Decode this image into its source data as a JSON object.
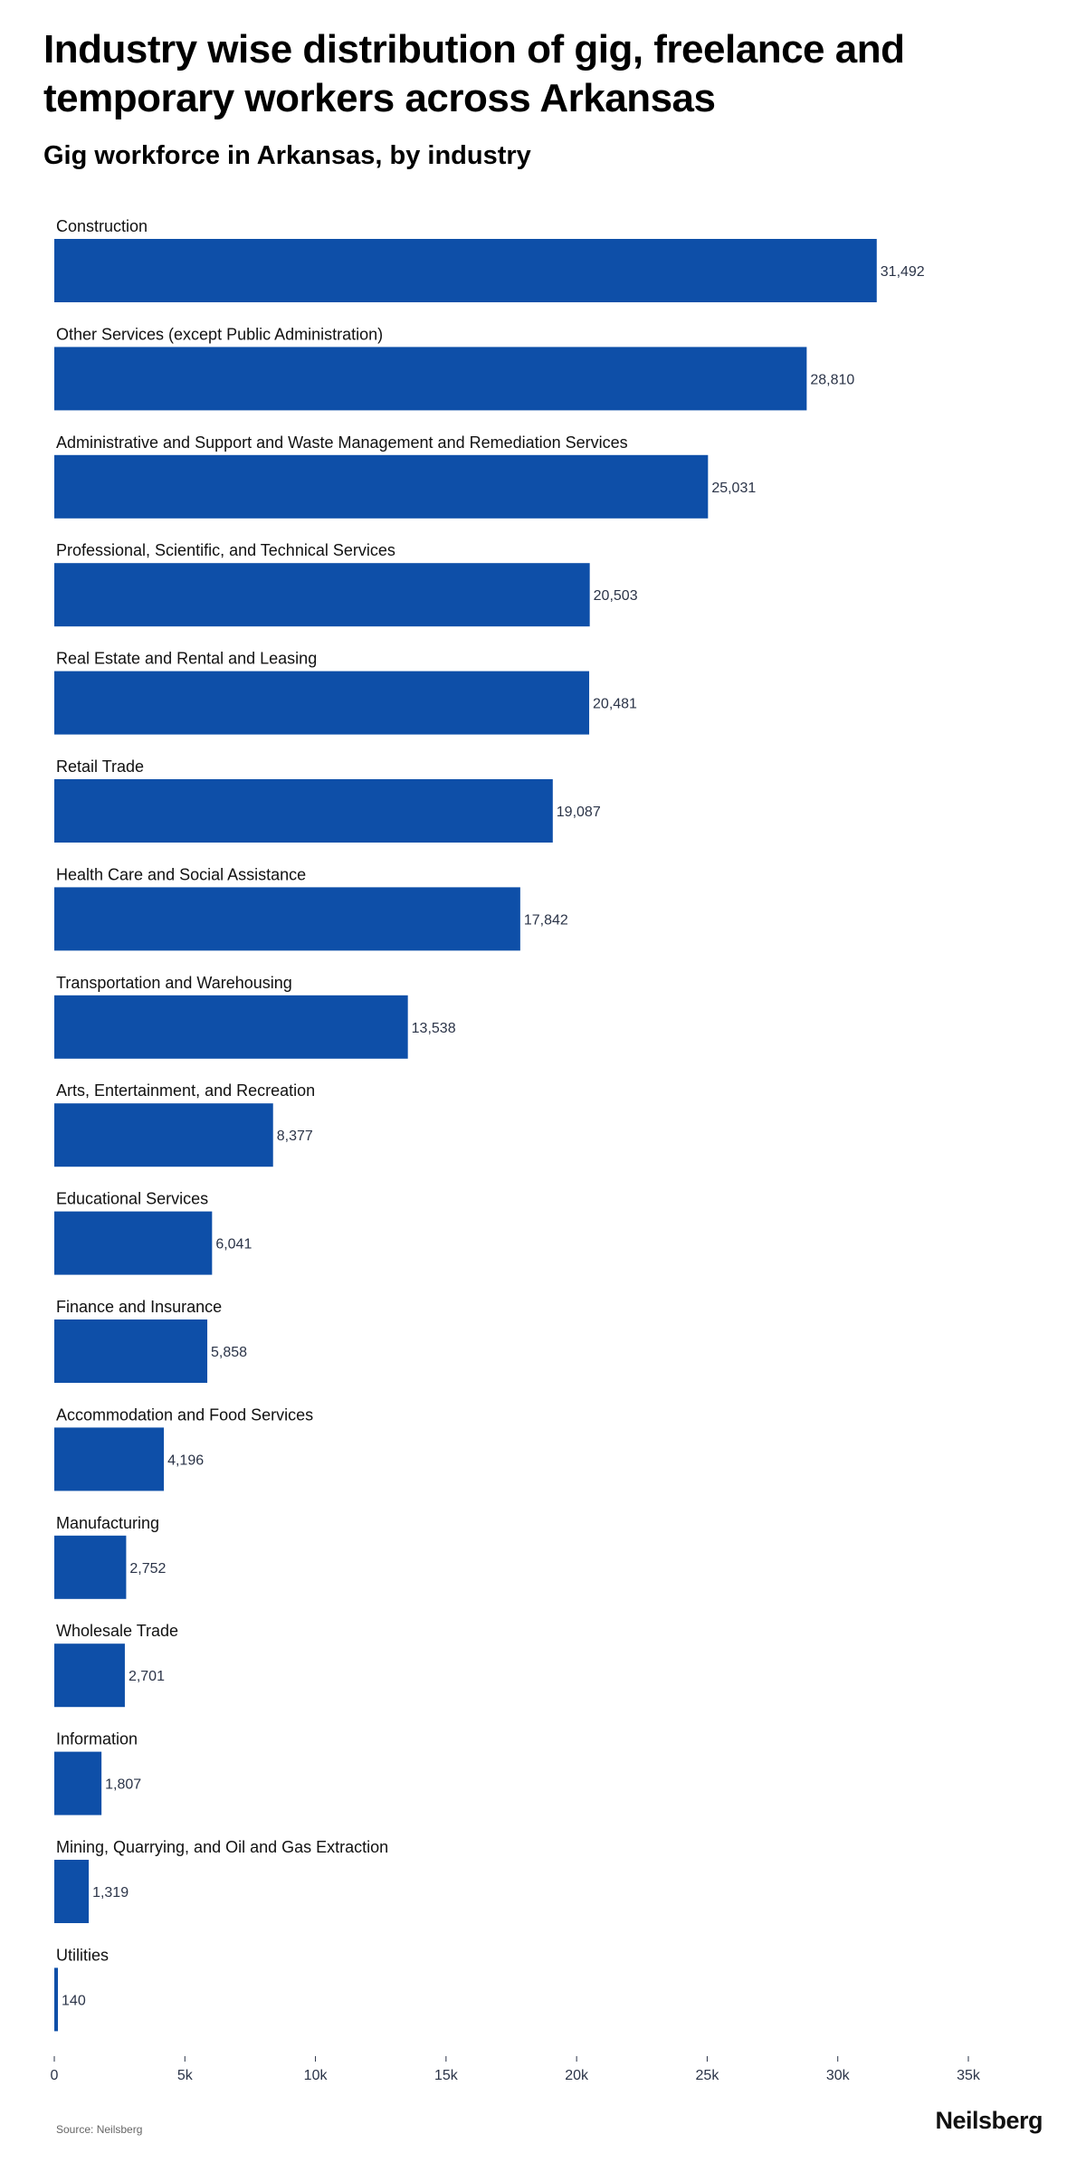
{
  "header": {
    "title": "Industry wise distribution of gig, freelance and temporary workers across Arkansas",
    "subtitle": "Gig workforce in Arkansas, by industry"
  },
  "footer": {
    "source": "Source: Neilsberg",
    "brand": "Neilsberg"
  },
  "colors": {
    "bar": "#0e4fa8",
    "value_label": "#2b3448",
    "tick": "#2b3448"
  },
  "chart_data": {
    "type": "bar",
    "orientation": "horizontal",
    "title": "Gig workforce in Arkansas, by industry",
    "categories": [
      "Construction",
      "Other Services (except Public Administration)",
      "Administrative and Support and Waste Management and Remediation Services",
      "Professional, Scientific, and Technical Services",
      "Real Estate and Rental and Leasing",
      "Retail Trade",
      "Health Care and Social Assistance",
      "Transportation and Warehousing",
      "Arts, Entertainment, and Recreation",
      "Educational Services",
      "Finance and Insurance",
      "Accommodation and Food Services",
      "Manufacturing",
      "Wholesale Trade",
      "Information",
      "Mining, Quarrying, and Oil and Gas Extraction",
      "Utilities"
    ],
    "values": [
      31492,
      28810,
      25031,
      20503,
      20481,
      19087,
      17842,
      13538,
      8377,
      6041,
      5858,
      4196,
      2752,
      2701,
      1807,
      1319,
      140
    ],
    "value_labels": [
      "31,492",
      "28,810",
      "25,031",
      "20,503",
      "20,481",
      "19,087",
      "17,842",
      "13,538",
      "8,377",
      "6,041",
      "5,858",
      "4,196",
      "2,752",
      "2,701",
      "1,807",
      "1,319",
      "140"
    ],
    "xlim": [
      0,
      35000
    ],
    "x_ticks": [
      0,
      5000,
      10000,
      15000,
      20000,
      25000,
      30000,
      35000
    ],
    "x_tick_labels": [
      "0",
      "5k",
      "10k",
      "15k",
      "20k",
      "25k",
      "30k",
      "35k"
    ],
    "grid": false,
    "legend": "none"
  }
}
